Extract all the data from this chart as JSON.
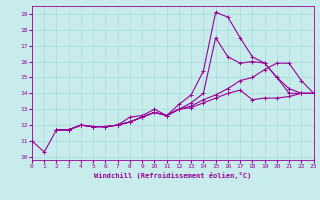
{
  "title": "",
  "xlabel": "Windchill (Refroidissement éolien,°C)",
  "ylabel": "",
  "bg_color": "#c8ecec",
  "line_color": "#990099",
  "xlim": [
    0,
    23
  ],
  "ylim": [
    9.8,
    19.5
  ],
  "xticks": [
    0,
    1,
    2,
    3,
    4,
    5,
    6,
    7,
    8,
    9,
    10,
    11,
    12,
    13,
    14,
    15,
    16,
    17,
    18,
    19,
    20,
    21,
    22,
    23
  ],
  "yticks": [
    10,
    11,
    12,
    13,
    14,
    15,
    16,
    17,
    18,
    19
  ],
  "grid_color": "#a8dcdc",
  "series1_x": [
    0,
    1,
    2,
    3,
    4,
    5,
    6,
    7,
    8,
    9,
    10,
    11,
    12,
    13,
    14,
    15,
    16,
    17,
    18,
    19,
    20,
    21,
    22,
    23
  ],
  "series1_y": [
    11.0,
    10.3,
    11.7,
    11.7,
    12.0,
    11.9,
    11.9,
    12.0,
    12.5,
    12.6,
    13.0,
    12.6,
    13.3,
    13.9,
    15.4,
    19.1,
    18.8,
    17.5,
    16.3,
    15.9,
    15.0,
    14.0,
    14.0,
    14.0
  ],
  "series2_x": [
    2,
    3,
    4,
    5,
    6,
    7,
    8,
    9,
    10,
    11,
    12,
    13,
    14,
    15,
    16,
    17,
    18,
    19,
    20,
    21,
    22,
    23
  ],
  "series2_y": [
    11.7,
    11.7,
    12.0,
    11.9,
    11.9,
    12.0,
    12.2,
    12.5,
    12.8,
    12.6,
    13.0,
    13.4,
    14.0,
    17.5,
    16.3,
    15.9,
    16.0,
    15.9,
    15.0,
    14.3,
    14.0,
    14.0
  ],
  "series3_x": [
    2,
    3,
    4,
    5,
    6,
    7,
    8,
    9,
    10,
    11,
    12,
    13,
    14,
    15,
    16,
    17,
    18,
    19,
    20,
    21,
    22,
    23
  ],
  "series3_y": [
    11.7,
    11.7,
    12.0,
    11.9,
    11.9,
    12.0,
    12.2,
    12.5,
    12.8,
    12.6,
    13.0,
    13.2,
    13.6,
    13.9,
    14.3,
    14.8,
    15.0,
    15.5,
    15.9,
    15.9,
    14.8,
    14.0
  ],
  "series4_x": [
    2,
    3,
    4,
    5,
    6,
    7,
    8,
    9,
    10,
    11,
    12,
    13,
    14,
    15,
    16,
    17,
    18,
    19,
    20,
    21,
    22,
    23
  ],
  "series4_y": [
    11.7,
    11.7,
    12.0,
    11.9,
    11.9,
    12.0,
    12.2,
    12.5,
    12.8,
    12.6,
    13.0,
    13.1,
    13.4,
    13.7,
    14.0,
    14.2,
    13.6,
    13.7,
    13.7,
    13.8,
    14.0,
    14.0
  ]
}
